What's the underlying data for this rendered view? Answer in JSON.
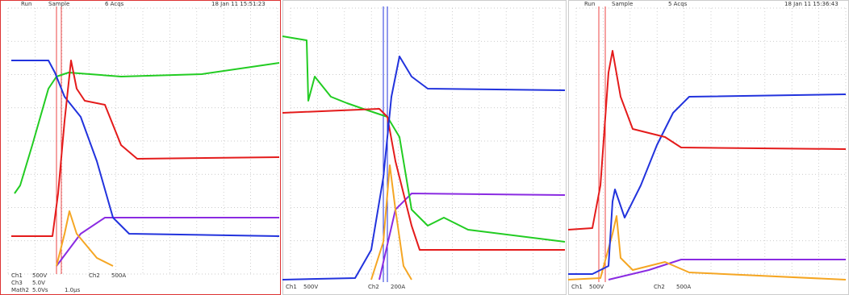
{
  "panels": [
    {
      "status": "Run",
      "mode": "Sample",
      "acqs": "6 Acqs",
      "timestamp": "18 Jan 11 15:51:23",
      "readouts": [
        "Ch1",
        "500V",
        "Ch3",
        "5.0V",
        "Math2",
        "5.0Vs",
        "1.0µs",
        "Ch2",
        "500A"
      ]
    },
    {
      "readouts": [
        "Ch1",
        "500V",
        "Ch2",
        "200A"
      ]
    },
    {
      "status": "Run",
      "mode": "Sample",
      "acqs": "5 Acqs",
      "timestamp": "18 Jan 11 15:36:43",
      "readouts": [
        "Ch1",
        "500V",
        "Ch2",
        "500A"
      ]
    }
  ]
}
